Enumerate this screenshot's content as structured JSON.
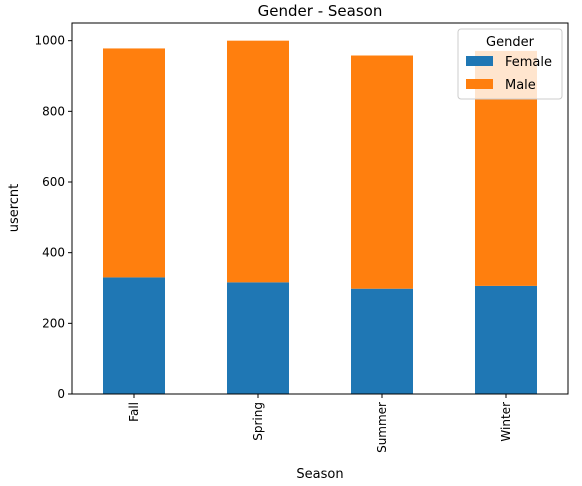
{
  "chart_data": {
    "type": "bar",
    "stacked": true,
    "title": "Gender - Season",
    "xlabel": "Season",
    "ylabel": "usercnt",
    "categories": [
      "Fall",
      "Spring",
      "Summer",
      "Winter"
    ],
    "series": [
      {
        "name": "Female",
        "values": [
          330,
          316,
          298,
          306
        ],
        "color": "#1f77b4"
      },
      {
        "name": "Male",
        "values": [
          648,
          684,
          660,
          665
        ],
        "color": "#ff7f0e"
      }
    ],
    "ylim": [
      0,
      1050
    ],
    "yticks": [
      "0",
      "200",
      "400",
      "600",
      "800",
      "1000"
    ],
    "legend": {
      "title": "Gender",
      "position": "top-right"
    },
    "grid": false
  }
}
